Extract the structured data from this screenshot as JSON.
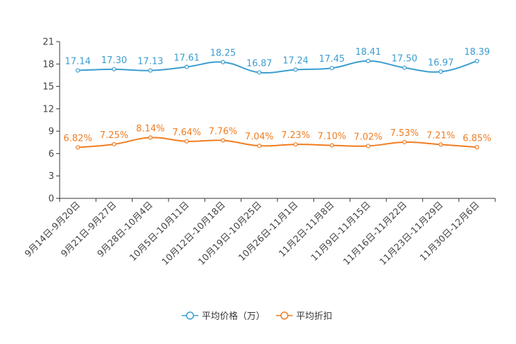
{
  "chart_data": {
    "type": "line",
    "title": "",
    "xlabel": "",
    "ylabel": "",
    "ylim": [
      0,
      21
    ],
    "yticks": [
      0,
      3,
      6,
      9,
      12,
      15,
      18,
      21
    ],
    "grid": false,
    "legend_position": "bottom",
    "categories": [
      "9月14日-9月20日",
      "9月21日-9月27日",
      "9月28日-10月4日",
      "10月5日-10月11日",
      "10月12日-10月18日",
      "10月19日-10月25日",
      "10月26日-11月1日",
      "11月2日-11月8日",
      "11月9日-11月15日",
      "11月16日-11月22日",
      "11月23日-11月29日",
      "11月30日-12月6日"
    ],
    "series": [
      {
        "name": "平均价格（万）",
        "color": "#3a9dd0",
        "values": [
          17.14,
          17.3,
          17.13,
          17.61,
          18.25,
          16.87,
          17.24,
          17.45,
          18.41,
          17.5,
          16.97,
          18.39
        ],
        "labels": [
          "17.14",
          "17.30",
          "17.13",
          "17.61",
          "18.25",
          "16.87",
          "17.24",
          "17.45",
          "18.41",
          "17.50",
          "16.97",
          "18.39"
        ]
      },
      {
        "name": "平均折扣",
        "color": "#f07c20",
        "values": [
          6.82,
          7.25,
          8.14,
          7.64,
          7.76,
          7.04,
          7.23,
          7.1,
          7.02,
          7.53,
          7.21,
          6.85
        ],
        "labels": [
          "6.82%",
          "7.25%",
          "8.14%",
          "7.64%",
          "7.76%",
          "7.04%",
          "7.23%",
          "7.10%",
          "7.02%",
          "7.53%",
          "7.21%",
          "6.85%"
        ]
      }
    ]
  }
}
